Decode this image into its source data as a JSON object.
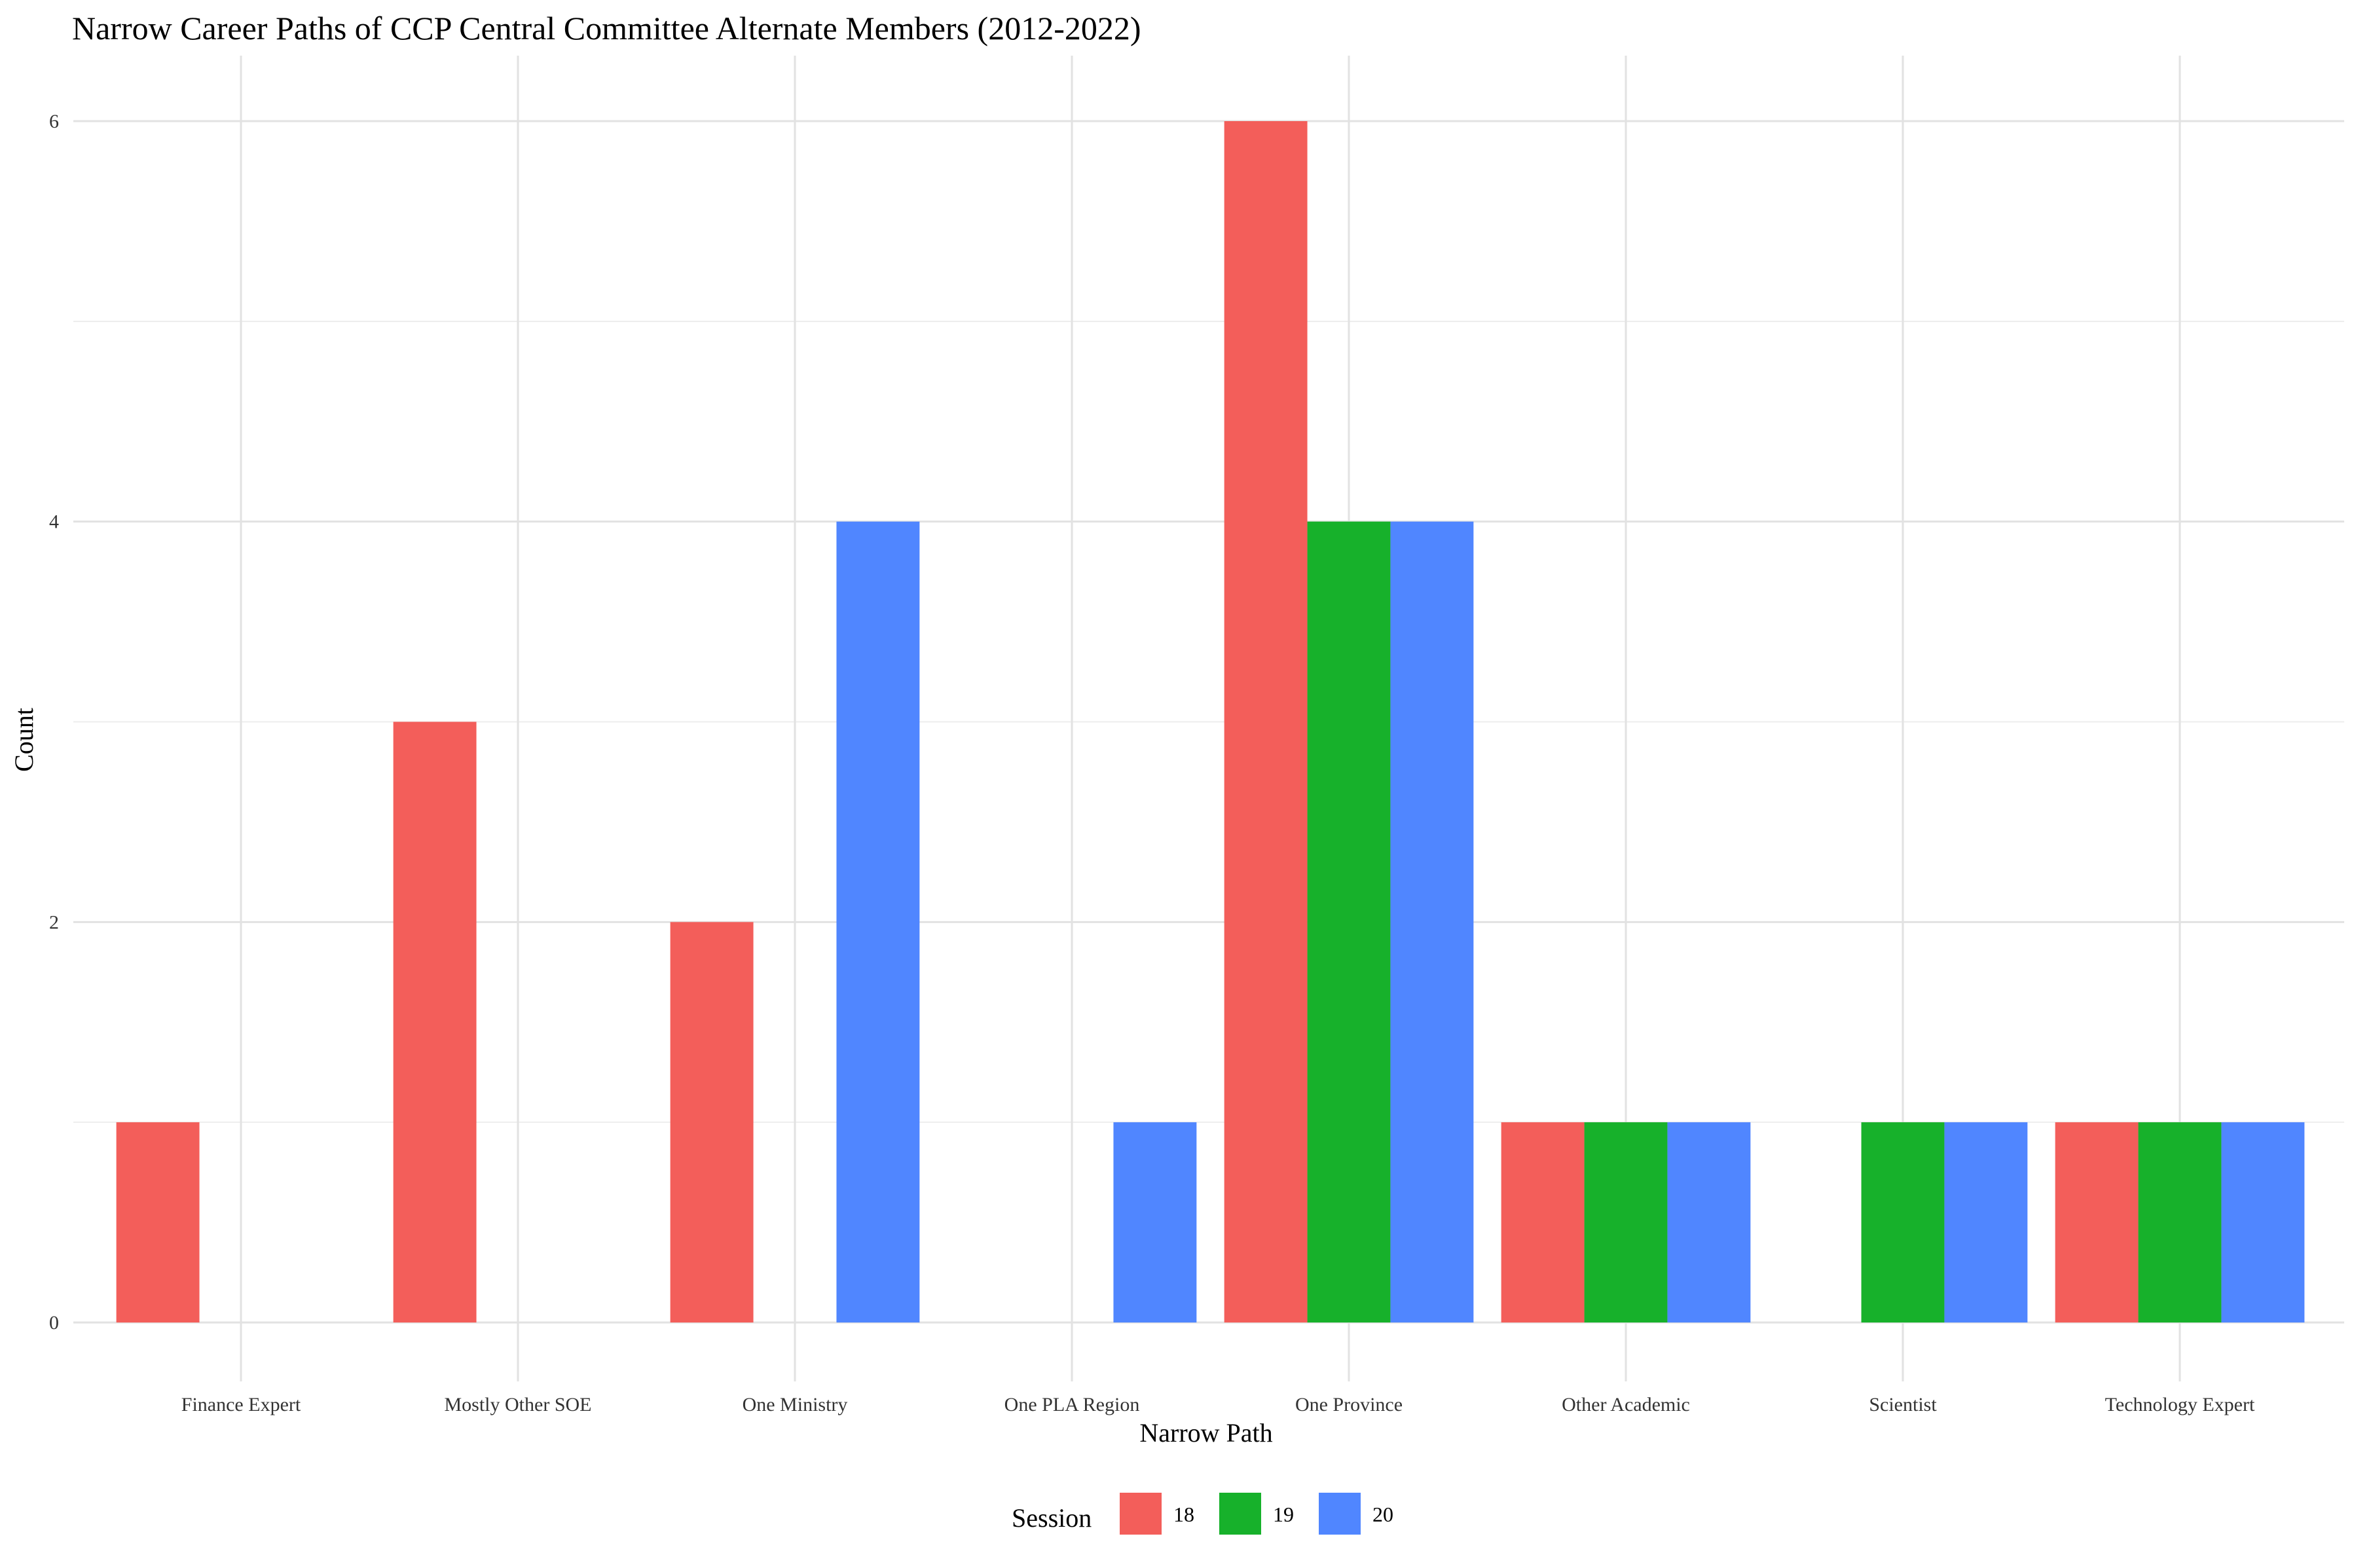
{
  "chart_data": {
    "type": "bar",
    "title": "Narrow Career Paths of CCP Central Committee Alternate Members (2012-2022)",
    "xlabel": "Narrow Path",
    "ylabel": "Count",
    "categories": [
      "Finance Expert",
      "Mostly Other SOE",
      "One Ministry",
      "One PLA Region",
      "One Province",
      "Other Academic",
      "Scientist",
      "Technology Expert"
    ],
    "series": [
      {
        "name": "18",
        "color": "#F35E5A",
        "values": [
          1,
          3,
          2,
          0,
          6,
          1,
          0,
          1
        ]
      },
      {
        "name": "19",
        "color": "#17B12B",
        "values": [
          0,
          0,
          0,
          0,
          4,
          1,
          1,
          1
        ]
      },
      {
        "name": "20",
        "color": "#5086FF",
        "values": [
          0,
          0,
          4,
          1,
          4,
          1,
          1,
          1
        ]
      }
    ],
    "ylim": [
      0,
      6
    ],
    "yticks": [
      0,
      2,
      4,
      6
    ],
    "grid": true,
    "legend": {
      "title": "Session",
      "position": "bottom"
    }
  }
}
